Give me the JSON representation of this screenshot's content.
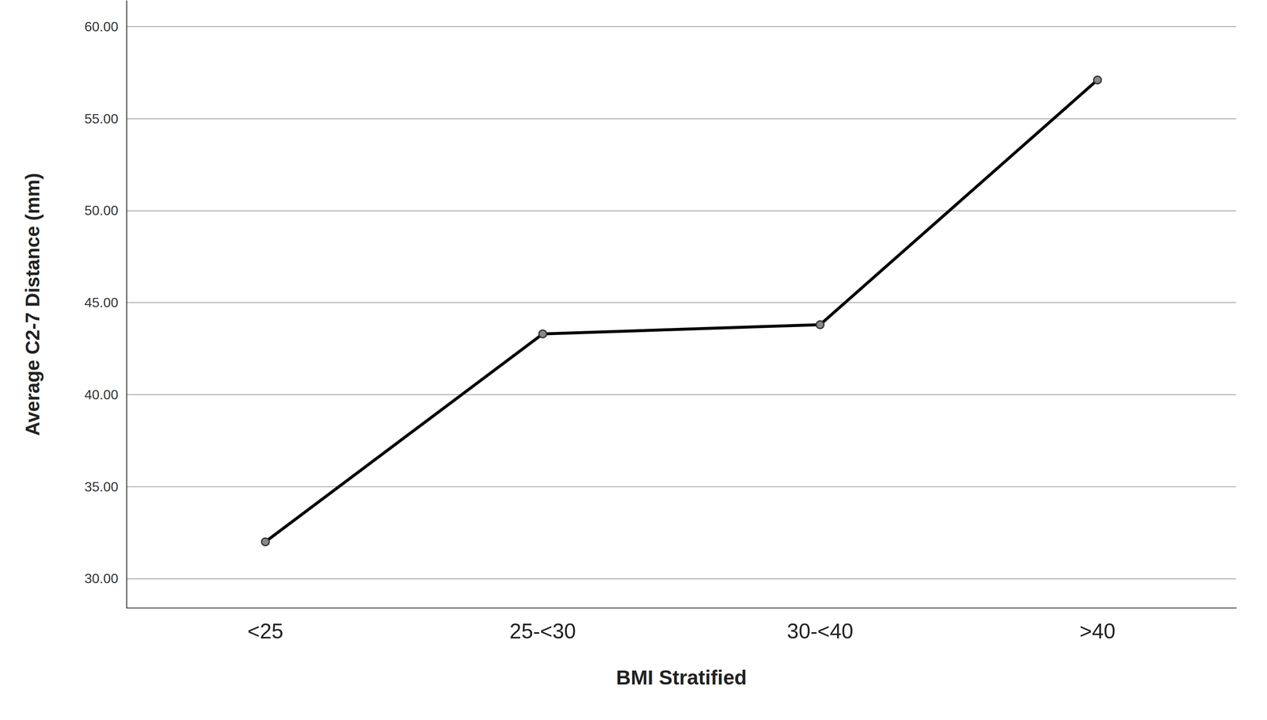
{
  "chart_data": {
    "type": "line",
    "x_label": "BMI Stratified",
    "y_label": "Average C2-7 Distance (mm)",
    "categories": [
      "<25",
      "25-<30",
      "30-<40",
      ">40"
    ],
    "values": [
      32.0,
      43.3,
      43.8,
      57.1
    ],
    "color": "#000000",
    "marker": "circle",
    "ylim": [
      28.4,
      61.4
    ],
    "yticks": [
      {
        "value": 30,
        "label": "30.00"
      },
      {
        "value": 35,
        "label": "35.00"
      },
      {
        "value": 40,
        "label": "40.00"
      },
      {
        "value": 45,
        "label": "45.00"
      },
      {
        "value": 50,
        "label": "50.00"
      },
      {
        "value": 55,
        "label": "55.00"
      },
      {
        "value": 60,
        "label": "60.00"
      }
    ],
    "grid": true
  }
}
